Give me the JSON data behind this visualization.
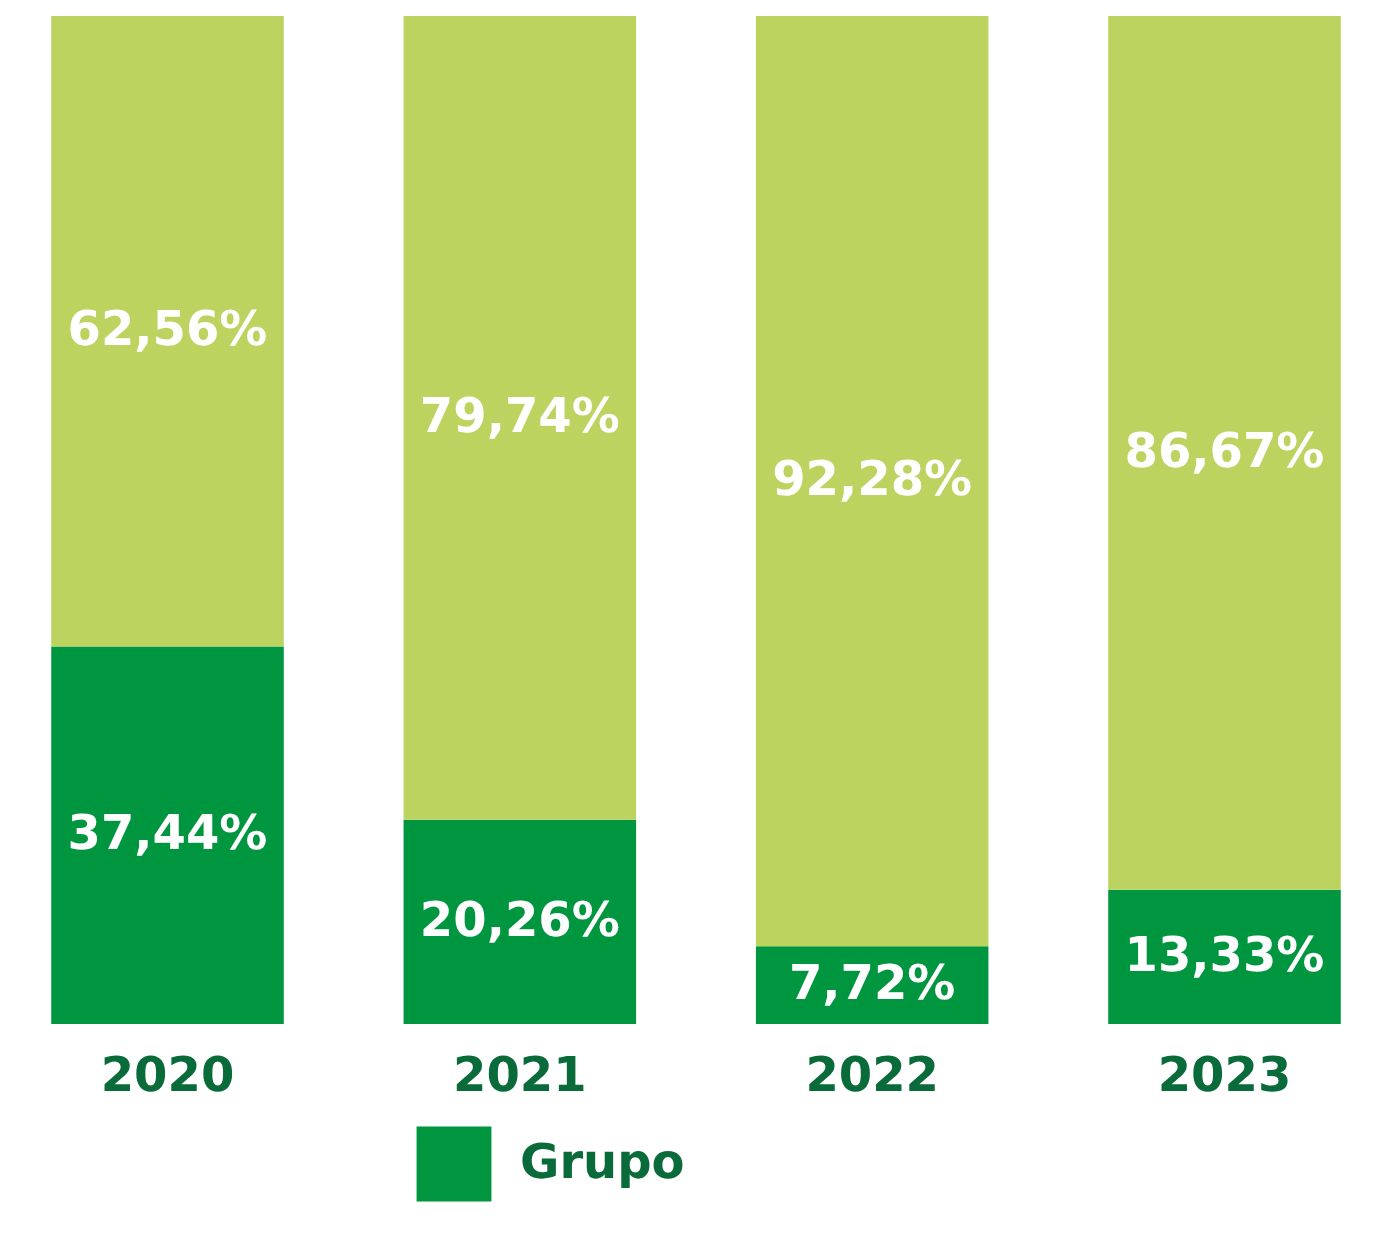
{
  "chart_data": {
    "type": "bar",
    "stacked": true,
    "ylim": [
      0,
      100
    ],
    "categories": [
      "2020",
      "2021",
      "2022",
      "2023"
    ],
    "series": [
      {
        "name": "Grupo",
        "color": "#009640",
        "values": [
          37.44,
          20.26,
          7.72,
          13.33
        ],
        "value_labels": [
          "37,44%",
          "20,26%",
          "7,72%",
          "13,33%"
        ]
      },
      {
        "color": "#bcd35f",
        "values": [
          62.56,
          79.74,
          92.28,
          86.67
        ],
        "value_labels": [
          "62,56%",
          "79,74%",
          "92,28%",
          "86,67%"
        ]
      }
    ],
    "legend": "bottom"
  }
}
